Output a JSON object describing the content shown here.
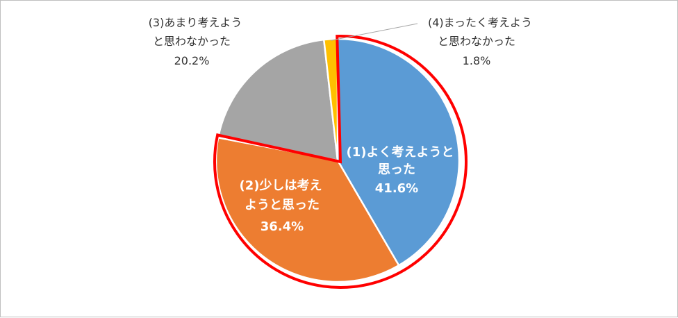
{
  "chart_data": {
    "type": "pie",
    "title": "",
    "slices": [
      {
        "label_lines": [
          "(1)よく考えようと",
          "思った"
        ],
        "value": 41.6,
        "value_text": "41.6%",
        "color": "#5b9bd5"
      },
      {
        "label_lines": [
          "(2)少しは考え",
          "ようと思った"
        ],
        "value": 36.4,
        "value_text": "36.4%",
        "color": "#ed7d31"
      },
      {
        "label_lines": [
          "(3)あまり考えよう",
          "と思わなかった"
        ],
        "value": 20.2,
        "value_text": "20.2%",
        "color": "#a5a5a5"
      },
      {
        "label_lines": [
          "(4)まったく考えよう",
          "と思わなかった"
        ],
        "value": 1.8,
        "value_text": "1.8%",
        "color": "#ffc000"
      }
    ],
    "highlight": {
      "slices": [
        0,
        1
      ],
      "color": "#ff0000"
    },
    "legend": "none"
  }
}
